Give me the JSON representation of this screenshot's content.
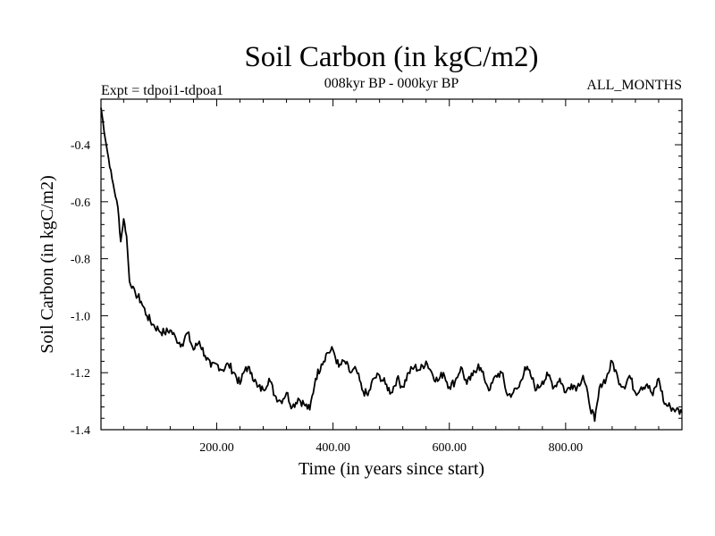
{
  "chart_data": {
    "type": "line",
    "title": "Soil Carbon (in kgC/m2)",
    "subtitle_left": "Expt = tdpoi1-tdpoa1",
    "subtitle_center": "008kyr BP - 000kyr BP",
    "subtitle_right": "ALL_MONTHS",
    "xlabel": "Time (in years since start)",
    "ylabel": "Soil Carbon (in kgC/m2)",
    "xlim": [
      1,
      1000
    ],
    "ylim": [
      -1.4,
      -0.24
    ],
    "x_ticks": [
      200,
      400,
      600,
      800
    ],
    "x_tick_labels": [
      "200.00",
      "400.00",
      "600.00",
      "800.00"
    ],
    "y_ticks": [
      -0.4,
      -0.6,
      -0.8,
      -1.0,
      -1.2,
      -1.4
    ],
    "y_tick_labels": [
      "-0.4",
      "-0.6",
      "-0.8",
      "-1.0",
      "-1.2",
      "-1.4"
    ],
    "grid": false,
    "line_color": "#000000",
    "series": [
      {
        "name": "Soil Carbon",
        "x": [
          1,
          10,
          20,
          30,
          35,
          40,
          45,
          50,
          60,
          70,
          80,
          90,
          100,
          110,
          120,
          130,
          140,
          150,
          160,
          170,
          180,
          190,
          200,
          210,
          220,
          230,
          240,
          250,
          260,
          270,
          280,
          290,
          300,
          310,
          320,
          330,
          340,
          350,
          360,
          370,
          380,
          390,
          400,
          410,
          420,
          430,
          440,
          450,
          460,
          470,
          480,
          490,
          500,
          510,
          520,
          530,
          540,
          550,
          560,
          570,
          580,
          590,
          600,
          610,
          620,
          630,
          640,
          650,
          660,
          670,
          680,
          690,
          700,
          710,
          720,
          730,
          740,
          750,
          760,
          770,
          780,
          790,
          800,
          810,
          820,
          830,
          840,
          850,
          860,
          870,
          880,
          890,
          900,
          910,
          920,
          930,
          940,
          950,
          960,
          970,
          980,
          990,
          1000
        ],
        "values": [
          -0.27,
          -0.4,
          -0.52,
          -0.62,
          -0.74,
          -0.66,
          -0.72,
          -0.88,
          -0.92,
          -0.95,
          -1.0,
          -1.03,
          -1.05,
          -1.06,
          -1.05,
          -1.08,
          -1.1,
          -1.06,
          -1.12,
          -1.09,
          -1.14,
          -1.18,
          -1.17,
          -1.19,
          -1.17,
          -1.2,
          -1.24,
          -1.18,
          -1.2,
          -1.25,
          -1.26,
          -1.22,
          -1.28,
          -1.3,
          -1.27,
          -1.32,
          -1.29,
          -1.31,
          -1.33,
          -1.22,
          -1.17,
          -1.13,
          -1.12,
          -1.18,
          -1.16,
          -1.2,
          -1.19,
          -1.26,
          -1.28,
          -1.22,
          -1.21,
          -1.24,
          -1.27,
          -1.22,
          -1.25,
          -1.2,
          -1.18,
          -1.19,
          -1.16,
          -1.2,
          -1.23,
          -1.2,
          -1.25,
          -1.23,
          -1.18,
          -1.24,
          -1.21,
          -1.17,
          -1.22,
          -1.26,
          -1.21,
          -1.2,
          -1.28,
          -1.27,
          -1.25,
          -1.18,
          -1.21,
          -1.26,
          -1.23,
          -1.21,
          -1.25,
          -1.22,
          -1.27,
          -1.24,
          -1.25,
          -1.21,
          -1.3,
          -1.37,
          -1.24,
          -1.22,
          -1.16,
          -1.22,
          -1.25,
          -1.21,
          -1.27,
          -1.25,
          -1.24,
          -1.28,
          -1.22,
          -1.31,
          -1.32,
          -1.33,
          -1.34
        ]
      }
    ]
  }
}
